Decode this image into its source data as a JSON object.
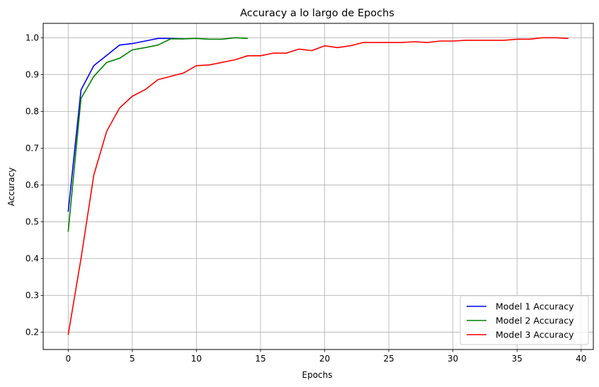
{
  "chart_data": {
    "type": "line",
    "title": "Accuracy a lo largo de Epochs",
    "xlabel": "Epochs",
    "ylabel": "Accuracy",
    "xlim": [
      -1.95,
      40.95
    ],
    "ylim": [
      0.153,
      1.039
    ],
    "xticks": [
      0,
      5,
      10,
      15,
      20,
      25,
      30,
      35,
      40
    ],
    "yticks": [
      0.2,
      0.3,
      0.4,
      0.5,
      0.6,
      0.7,
      0.8,
      0.9,
      1.0
    ],
    "xtick_labels": [
      "0",
      "5",
      "10",
      "15",
      "20",
      "25",
      "30",
      "35",
      "40"
    ],
    "ytick_labels": [
      "0.2",
      "0.3",
      "0.4",
      "0.5",
      "0.6",
      "0.7",
      "0.8",
      "0.9",
      "1.0"
    ],
    "grid": true,
    "legend_position": "lower-right",
    "series": [
      {
        "name": "Model 1 Accuracy",
        "color": "#0000ff",
        "x": [
          0,
          1,
          2,
          3,
          4,
          5,
          6,
          7,
          8,
          9
        ],
        "y": [
          0.527,
          0.858,
          0.924,
          0.952,
          0.98,
          0.984,
          0.991,
          0.998,
          0.998,
          0.997
        ]
      },
      {
        "name": "Model 2 Accuracy",
        "color": "#008000",
        "x": [
          0,
          1,
          2,
          3,
          4,
          5,
          6,
          7,
          8,
          9,
          10,
          11,
          12,
          13,
          14
        ],
        "y": [
          0.473,
          0.835,
          0.895,
          0.933,
          0.944,
          0.967,
          0.973,
          0.98,
          0.997,
          0.997,
          0.998,
          0.996,
          0.996,
          1.0,
          0.998
        ]
      },
      {
        "name": "Model 3 Accuracy",
        "color": "#ff0000",
        "x": [
          0,
          1,
          2,
          3,
          4,
          5,
          6,
          7,
          8,
          9,
          10,
          11,
          12,
          13,
          14,
          15,
          16,
          17,
          18,
          19,
          20,
          21,
          22,
          23,
          24,
          25,
          26,
          27,
          28,
          29,
          30,
          31,
          32,
          33,
          34,
          35,
          36,
          37,
          38,
          39
        ],
        "y": [
          0.193,
          0.4,
          0.627,
          0.746,
          0.809,
          0.841,
          0.859,
          0.886,
          0.895,
          0.904,
          0.924,
          0.926,
          0.933,
          0.94,
          0.951,
          0.951,
          0.958,
          0.958,
          0.969,
          0.965,
          0.978,
          0.973,
          0.978,
          0.987,
          0.987,
          0.987,
          0.987,
          0.989,
          0.987,
          0.991,
          0.991,
          0.993,
          0.993,
          0.993,
          0.993,
          0.996,
          0.996,
          1.0,
          1.0,
          0.998
        ]
      }
    ]
  }
}
